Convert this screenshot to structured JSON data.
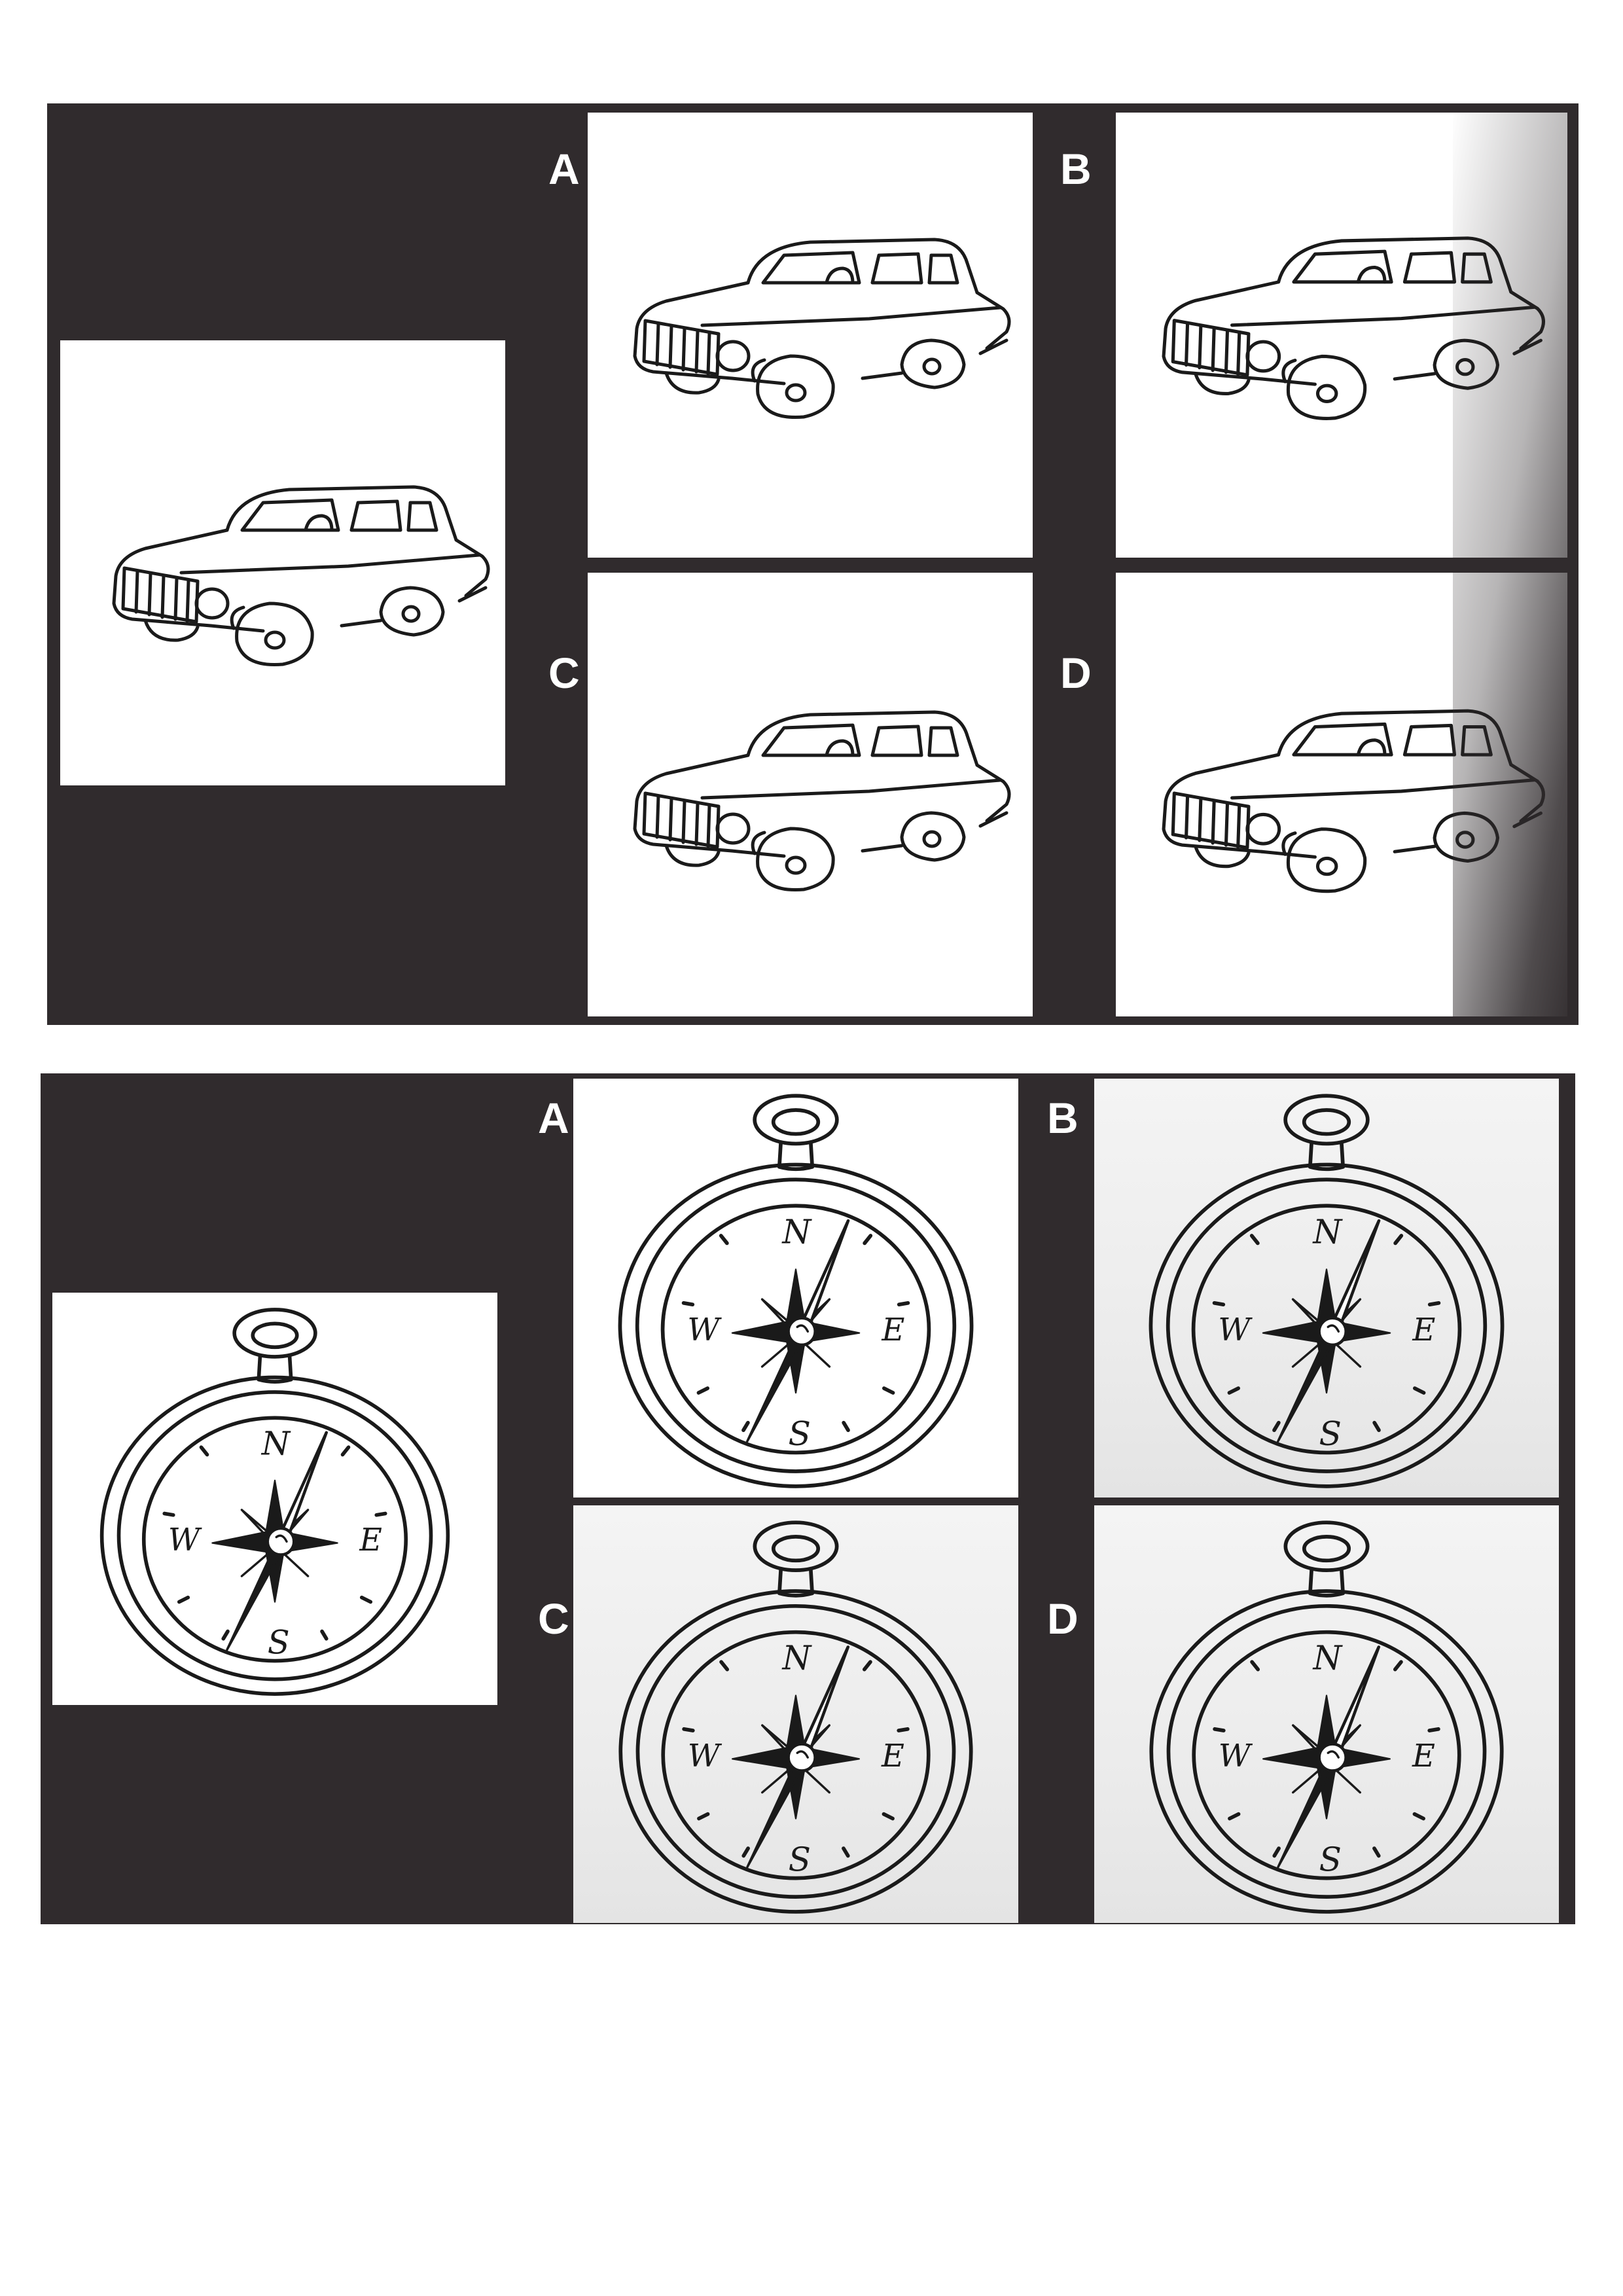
{
  "colors": {
    "panel": "#302b2d",
    "cell": "#ffffff",
    "line": "#1a1a1a",
    "letter": "#ffffff"
  },
  "puzzles": [
    {
      "subject": "car",
      "options": [
        {
          "letter": "A"
        },
        {
          "letter": "B"
        },
        {
          "letter": "C"
        },
        {
          "letter": "D"
        }
      ]
    },
    {
      "subject": "compass",
      "options": [
        {
          "letter": "A"
        },
        {
          "letter": "B"
        },
        {
          "letter": "C"
        },
        {
          "letter": "D"
        }
      ]
    }
  ]
}
